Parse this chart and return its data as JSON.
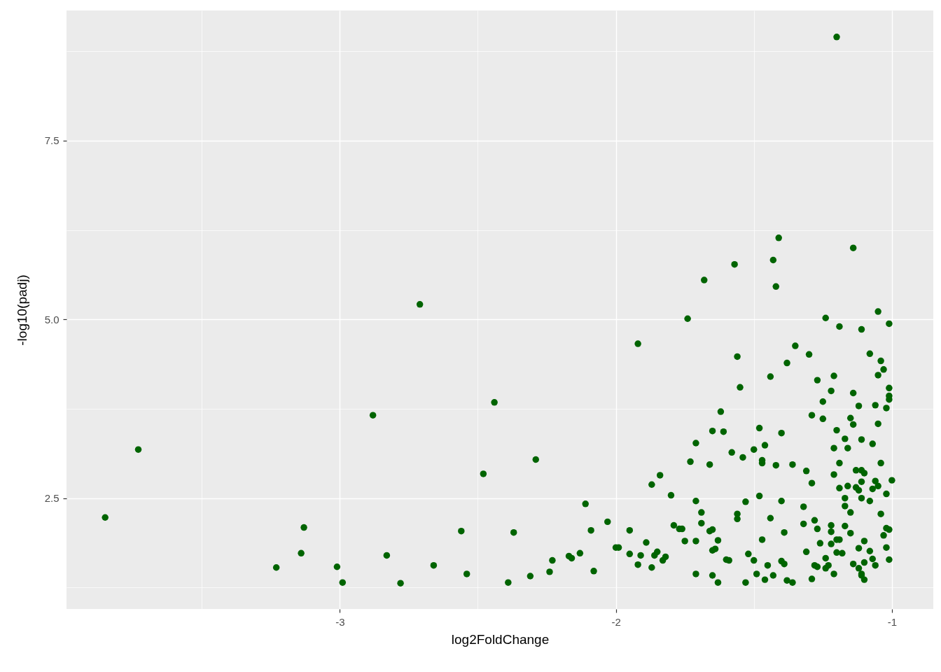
{
  "chart_data": {
    "type": "scatter",
    "xlabel": "log2FoldChange",
    "ylabel": "-log10(padj)",
    "color": "#006400",
    "marker": "circle",
    "grid": true,
    "xlim": [
      -3.99,
      -0.85
    ],
    "ylim": [
      0.95,
      9.32
    ],
    "xticks": [
      {
        "value": -3.5,
        "label": null
      },
      -3,
      {
        "value": -2.5,
        "label": null
      },
      -2,
      {
        "value": -1.5,
        "label": null
      },
      -1
    ],
    "yticks": [
      {
        "value": 1.25,
        "label": null
      },
      2.5,
      {
        "value": 3.75,
        "label": null
      },
      {
        "value": 5,
        "label": "5.0"
      },
      {
        "value": 6.25,
        "label": null
      },
      7.5,
      {
        "value": 8.75,
        "label": null
      }
    ],
    "x": [
      -3.85,
      -3.73,
      -3.23,
      -3.14,
      -3.13,
      -3.01,
      -2.99,
      -2.88,
      -2.83,
      -2.78,
      -2.71,
      -2.66,
      -2.56,
      -2.54,
      -2.48,
      -2.44,
      -2.39,
      -2.37,
      -2.31,
      -2.29,
      -2.24,
      -2.23,
      -2.17,
      -2.16,
      -2.13,
      -2.11,
      -2.09,
      -2.08,
      -2.03,
      -2.0,
      -1.99,
      -1.95,
      -1.95,
      -1.92,
      -1.92,
      -1.91,
      -1.89,
      -1.87,
      -1.87,
      -1.86,
      -1.85,
      -1.84,
      -1.83,
      -1.82,
      -1.8,
      -1.79,
      -1.77,
      -1.76,
      -1.75,
      -1.74,
      -1.73,
      -1.71,
      -1.71,
      -1.71,
      -1.71,
      -1.69,
      -1.69,
      -1.68,
      -1.66,
      -1.66,
      -1.65,
      -1.65,
      -1.65,
      -1.65,
      -1.64,
      -1.63,
      -1.63,
      -1.62,
      -1.61,
      -1.6,
      -1.59,
      -1.58,
      -1.57,
      -1.56,
      -1.56,
      -1.56,
      -1.55,
      -1.54,
      -1.53,
      -1.53,
      -1.52,
      -1.5,
      -1.5,
      -1.49,
      -1.48,
      -1.48,
      -1.47,
      -1.47,
      -1.47,
      -1.46,
      -1.46,
      -1.45,
      -1.44,
      -1.44,
      -1.43,
      -1.43,
      -1.42,
      -1.42,
      -1.41,
      -1.4,
      -1.4,
      -1.4,
      -1.39,
      -1.39,
      -1.38,
      -1.38,
      -1.36,
      -1.36,
      -1.35,
      -1.32,
      -1.32,
      -1.31,
      -1.31,
      -1.3,
      -1.29,
      -1.29,
      -1.29,
      -1.28,
      -1.28,
      -1.27,
      -1.27,
      -1.27,
      -1.26,
      -1.25,
      -1.25,
      -1.24,
      -1.24,
      -1.24,
      -1.23,
      -1.22,
      -1.22,
      -1.22,
      -1.22,
      -1.21,
      -1.21,
      -1.21,
      -1.21,
      -1.2,
      -1.2,
      -1.2,
      -1.19,
      -1.19,
      -1.19,
      -1.19,
      -1.18,
      -1.17,
      -1.17,
      -1.17,
      -1.17,
      -1.16,
      -1.16,
      -1.15,
      -1.15,
      -1.15,
      -1.14,
      -1.14,
      -1.14,
      -1.14,
      -1.13,
      -1.13,
      -1.12,
      -1.12,
      -1.12,
      -1.12,
      -1.11,
      -1.11,
      -1.11,
      -1.11,
      -1.11,
      -1.1,
      -1.1,
      -1.1,
      -1.08,
      -1.08,
      -1.08,
      -1.07,
      -1.07,
      -1.07,
      -1.06,
      -1.06,
      -1.06,
      -1.05,
      -1.05,
      -1.05,
      -1.05,
      -1.04,
      -1.04,
      -1.04,
      -1.03,
      -1.03,
      -1.02,
      -1.02,
      -1.02,
      -1.02,
      -1.01,
      -1.01,
      -1.01,
      -1.01,
      -1.0,
      -1.01,
      -1.11,
      -1.1,
      -1.11,
      -1.2,
      -1.01
    ],
    "values": [
      2.23,
      3.18,
      1.53,
      1.73,
      2.09,
      1.54,
      1.32,
      3.66,
      1.7,
      1.31,
      5.21,
      1.56,
      2.04,
      1.44,
      2.84,
      3.84,
      1.32,
      2.02,
      1.41,
      3.04,
      1.47,
      1.63,
      1.69,
      1.66,
      1.73,
      2.42,
      2.05,
      1.48,
      2.17,
      1.81,
      1.81,
      2.05,
      1.72,
      4.66,
      1.57,
      1.7,
      1.88,
      2.69,
      1.53,
      1.7,
      1.75,
      2.82,
      1.63,
      1.68,
      2.54,
      2.12,
      2.07,
      2.07,
      1.9,
      5.01,
      3.01,
      2.46,
      1.9,
      3.27,
      1.44,
      2.3,
      2.15,
      5.55,
      2.97,
      2.04,
      3.44,
      1.42,
      2.06,
      1.77,
      1.79,
      1.91,
      1.32,
      3.71,
      3.43,
      1.64,
      1.63,
      3.14,
      5.77,
      2.28,
      4.48,
      2.21,
      4.05,
      3.07,
      1.32,
      2.45,
      1.72,
      3.18,
      1.63,
      1.44,
      3.48,
      2.53,
      3.03,
      1.92,
      2.99,
      1.36,
      3.24,
      1.56,
      2.22,
      4.2,
      1.42,
      5.83,
      5.46,
      2.96,
      6.14,
      3.41,
      2.46,
      1.62,
      1.58,
      2.02,
      1.35,
      4.39,
      2.97,
      1.32,
      4.63,
      2.38,
      2.14,
      2.88,
      1.75,
      4.51,
      2.71,
      3.66,
      1.37,
      1.56,
      2.19,
      1.54,
      4.15,
      2.07,
      1.87,
      3.85,
      3.61,
      5.02,
      1.52,
      1.66,
      1.56,
      2.03,
      1.86,
      2.12,
      4.0,
      3.2,
      4.21,
      1.44,
      2.83,
      3.45,
      1.74,
      1.92,
      2.99,
      2.64,
      1.92,
      4.9,
      1.73,
      2.39,
      2.11,
      3.33,
      2.5,
      3.2,
      2.67,
      2.3,
      2.01,
      3.62,
      3.53,
      1.58,
      3.97,
      6.0,
      2.89,
      2.65,
      1.52,
      1.8,
      3.79,
      2.61,
      2.73,
      3.32,
      2.89,
      1.42,
      4.86,
      2.85,
      1.9,
      1.6,
      4.52,
      1.76,
      2.46,
      3.26,
      2.63,
      1.65,
      1.56,
      2.74,
      3.8,
      3.54,
      4.22,
      2.67,
      5.11,
      2.99,
      4.42,
      2.28,
      1.98,
      4.3,
      2.56,
      1.81,
      2.08,
      3.76,
      3.88,
      4.94,
      4.04,
      2.06,
      2.75,
      1.64,
      2.5,
      1.36,
      1.44,
      8.95,
      3.93
    ]
  }
}
